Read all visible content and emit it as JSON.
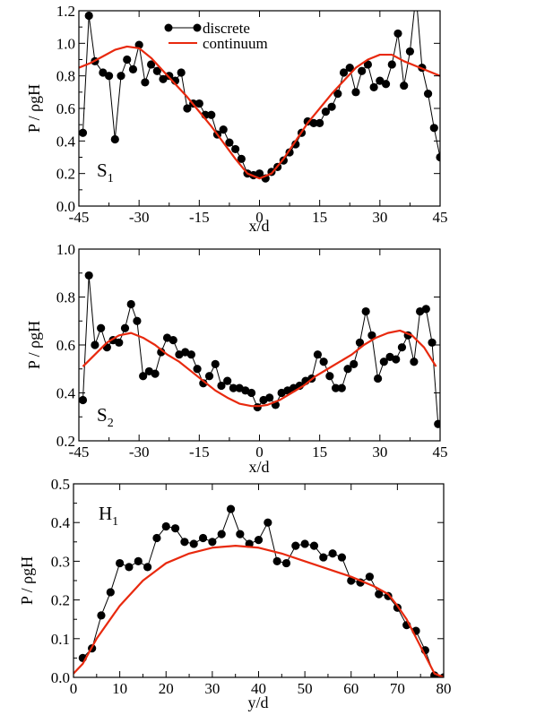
{
  "legend": {
    "discrete": "discrete",
    "continuum": "continuum"
  },
  "colors": {
    "discrete": "#000000",
    "continuum": "#e8290e",
    "axes": "#000000"
  },
  "chart_data": [
    {
      "type": "line",
      "panel_label": "S",
      "panel_label_sub": "1",
      "xlabel": "x/d",
      "ylabel": "P / ρgH",
      "xlim": [
        -45,
        45
      ],
      "ylim": [
        0.0,
        1.2
      ],
      "xticks": [
        -45,
        -30,
        -15,
        0,
        15,
        30,
        45
      ],
      "yticks": [
        0.0,
        0.2,
        0.4,
        0.6,
        0.8,
        1.0,
        1.2
      ],
      "legend_position": "top-center",
      "series": [
        {
          "name": "discrete",
          "style": "line-markers",
          "x": [
            -44,
            -42.5,
            -41,
            -39,
            -37.5,
            -36,
            -34.5,
            -33,
            -31.5,
            -30,
            -28.5,
            -27,
            -25.5,
            -24,
            -22.5,
            -21,
            -19.5,
            -18,
            -16.5,
            -15,
            -13.5,
            -12,
            -10.5,
            -9,
            -7.5,
            -6,
            -4.5,
            -3,
            -1.5,
            0,
            1.5,
            3,
            4.5,
            6,
            7.5,
            9,
            10.5,
            12,
            13.5,
            15,
            16.5,
            18,
            19.5,
            21,
            22.5,
            24,
            25.5,
            27,
            28.5,
            30,
            31.5,
            33,
            34.5,
            36,
            37.5,
            39,
            40.5,
            42,
            43.5,
            45
          ],
          "y": [
            0.45,
            1.17,
            0.89,
            0.82,
            0.8,
            0.41,
            0.8,
            0.9,
            0.84,
            0.99,
            0.76,
            0.87,
            0.83,
            0.78,
            0.8,
            0.77,
            0.82,
            0.6,
            0.63,
            0.63,
            0.56,
            0.56,
            0.44,
            0.47,
            0.39,
            0.35,
            0.29,
            0.2,
            0.19,
            0.2,
            0.17,
            0.21,
            0.24,
            0.28,
            0.33,
            0.38,
            0.45,
            0.52,
            0.51,
            0.51,
            0.58,
            0.61,
            0.69,
            0.82,
            0.85,
            0.7,
            0.83,
            0.87,
            0.73,
            0.77,
            0.75,
            0.87,
            1.06,
            0.74,
            0.95,
            1.3,
            0.85,
            0.69,
            0.48,
            0.3
          ]
        },
        {
          "name": "continuum",
          "style": "line",
          "x": [
            -45,
            -42,
            -39,
            -36,
            -33,
            -30,
            -27,
            -24,
            -21,
            -18,
            -15,
            -12,
            -9,
            -6,
            -3,
            0,
            3,
            6,
            9,
            12,
            15,
            18,
            21,
            24,
            27,
            30,
            33,
            36,
            39,
            42,
            45
          ],
          "y": [
            0.85,
            0.88,
            0.92,
            0.96,
            0.98,
            0.97,
            0.91,
            0.83,
            0.75,
            0.67,
            0.58,
            0.49,
            0.39,
            0.29,
            0.2,
            0.17,
            0.2,
            0.29,
            0.4,
            0.51,
            0.6,
            0.69,
            0.77,
            0.85,
            0.9,
            0.93,
            0.93,
            0.89,
            0.86,
            0.83,
            0.8
          ]
        }
      ]
    },
    {
      "type": "line",
      "panel_label": "S",
      "panel_label_sub": "2",
      "xlabel": "x/d",
      "ylabel": "P / ρgH",
      "xlim": [
        -45,
        45
      ],
      "ylim": [
        0.2,
        1.0
      ],
      "xticks": [
        -45,
        -30,
        -15,
        0,
        15,
        30,
        45
      ],
      "yticks": [
        0.2,
        0.4,
        0.6,
        0.8,
        1.0
      ],
      "series": [
        {
          "name": "discrete",
          "style": "line-markers",
          "x": [
            -44,
            -42.5,
            -41,
            -39.5,
            -38,
            -36.5,
            -35,
            -33.5,
            -32,
            -30.5,
            -29,
            -27.5,
            -26,
            -24.5,
            -23,
            -21.5,
            -20,
            -18.5,
            -17,
            -15.5,
            -14,
            -12.5,
            -11,
            -9.5,
            -8,
            -6.5,
            -5,
            -3.5,
            -2,
            -0.5,
            1,
            2.5,
            4,
            5.5,
            7,
            8.5,
            10,
            11.5,
            13,
            14.5,
            16,
            17.5,
            19,
            20.5,
            22,
            23.5,
            25,
            26.5,
            28,
            29.5,
            31,
            32.5,
            34,
            35.5,
            37,
            38.5,
            40,
            41.5,
            43,
            44.5
          ],
          "y": [
            0.37,
            0.89,
            0.6,
            0.67,
            0.59,
            0.62,
            0.61,
            0.67,
            0.77,
            0.7,
            0.47,
            0.49,
            0.48,
            0.57,
            0.63,
            0.62,
            0.56,
            0.57,
            0.56,
            0.5,
            0.44,
            0.47,
            0.52,
            0.43,
            0.45,
            0.42,
            0.42,
            0.41,
            0.4,
            0.34,
            0.37,
            0.38,
            0.35,
            0.4,
            0.41,
            0.42,
            0.43,
            0.45,
            0.46,
            0.56,
            0.53,
            0.47,
            0.42,
            0.42,
            0.5,
            0.52,
            0.61,
            0.74,
            0.64,
            0.46,
            0.53,
            0.55,
            0.54,
            0.59,
            0.64,
            0.53,
            0.74,
            0.75,
            0.61,
            0.27
          ]
        },
        {
          "name": "continuum",
          "style": "line",
          "x": [
            -44,
            -41,
            -38,
            -35,
            -32,
            -29,
            -26,
            -23,
            -20,
            -17,
            -14,
            -11,
            -8,
            -5,
            -2,
            0,
            2,
            5,
            8,
            11,
            14,
            17,
            20,
            23,
            26,
            29,
            32,
            35,
            38,
            41,
            44
          ],
          "y": [
            0.51,
            0.56,
            0.61,
            0.64,
            0.65,
            0.63,
            0.6,
            0.56,
            0.53,
            0.49,
            0.45,
            0.41,
            0.38,
            0.355,
            0.345,
            0.345,
            0.35,
            0.37,
            0.4,
            0.43,
            0.47,
            0.5,
            0.53,
            0.56,
            0.6,
            0.63,
            0.65,
            0.66,
            0.64,
            0.59,
            0.51
          ]
        }
      ]
    },
    {
      "type": "line",
      "panel_label": "H",
      "panel_label_sub": "1",
      "xlabel": "y/d",
      "ylabel": "P / ρgH",
      "xlim": [
        0,
        80
      ],
      "ylim": [
        0.0,
        0.5
      ],
      "xticks": [
        0,
        10,
        20,
        30,
        40,
        50,
        60,
        70,
        80
      ],
      "yticks": [
        0.0,
        0.1,
        0.2,
        0.3,
        0.4,
        0.5
      ],
      "series": [
        {
          "name": "discrete",
          "style": "line-markers",
          "x": [
            2,
            4,
            6,
            8,
            10,
            12,
            14,
            16,
            18,
            20,
            22,
            24,
            26,
            28,
            30,
            32,
            34,
            36,
            38,
            40,
            42,
            44,
            46,
            48,
            50,
            52,
            54,
            56,
            58,
            60,
            62,
            64,
            66,
            68,
            70,
            72,
            74,
            76,
            78,
            80
          ],
          "y": [
            0.05,
            0.075,
            0.16,
            0.22,
            0.295,
            0.285,
            0.3,
            0.285,
            0.36,
            0.39,
            0.385,
            0.35,
            0.345,
            0.36,
            0.35,
            0.37,
            0.435,
            0.37,
            0.345,
            0.355,
            0.4,
            0.3,
            0.295,
            0.34,
            0.345,
            0.34,
            0.31,
            0.32,
            0.31,
            0.25,
            0.245,
            0.26,
            0.215,
            0.21,
            0.18,
            0.135,
            0.12,
            0.07,
            0.005,
            0.0
          ]
        },
        {
          "name": "continuum",
          "style": "line",
          "x": [
            0,
            2,
            5,
            10,
            15,
            20,
            25,
            30,
            35,
            40,
            45,
            50,
            55,
            60,
            65,
            68,
            70,
            72,
            75,
            78,
            80
          ],
          "y": [
            0.01,
            0.035,
            0.1,
            0.185,
            0.25,
            0.295,
            0.32,
            0.335,
            0.34,
            0.335,
            0.32,
            0.3,
            0.28,
            0.26,
            0.235,
            0.215,
            0.185,
            0.15,
            0.08,
            0.01,
            0.0
          ]
        }
      ]
    }
  ]
}
